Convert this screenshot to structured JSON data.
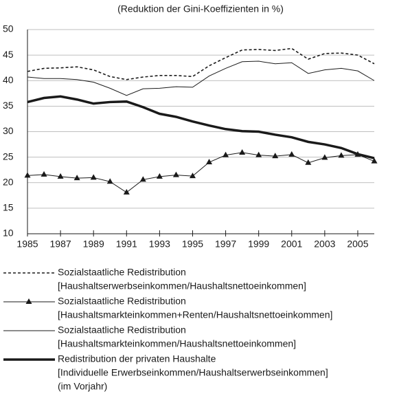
{
  "chart_data": {
    "type": "line",
    "subtitle": "(Reduktion der Gini-Koeffizienten in %)",
    "x": [
      1985,
      1986,
      1987,
      1988,
      1989,
      1990,
      1991,
      1992,
      1993,
      1994,
      1995,
      1996,
      1997,
      1998,
      1999,
      2000,
      2001,
      2002,
      2003,
      2004,
      2005,
      2006
    ],
    "xlim": [
      1985,
      2006
    ],
    "xticks": [
      1985,
      1987,
      1989,
      1991,
      1993,
      1995,
      1997,
      1999,
      2001,
      2003,
      2005
    ],
    "ylim": [
      10,
      50
    ],
    "yticks": [
      10,
      15,
      20,
      25,
      30,
      35,
      40,
      45,
      50
    ],
    "grid": true,
    "series": [
      {
        "name": "Sozialstaatliche Redistribution",
        "detail": [
          "[Haushaltserwerbseinkommen/Haushaltsnettoeinkommen]"
        ],
        "color": "#1a1a1a",
        "line_style": "dotted",
        "line_width": 1.6,
        "marker": "none",
        "values": [
          41.8,
          42.4,
          42.5,
          42.7,
          42.1,
          40.8,
          40.2,
          40.7,
          41.0,
          41.0,
          40.8,
          42.9,
          44.5,
          46.0,
          46.1,
          45.9,
          46.3,
          44.2,
          45.3,
          45.4,
          45.0,
          43.3
        ]
      },
      {
        "name": "Sozialstaatliche Redistribution",
        "detail": [
          "[Haushaltsmarkteinkommen+Renten/Haushaltsnettoeinkommen]"
        ],
        "color": "#1a1a1a",
        "line_style": "solid",
        "line_width": 1,
        "marker": "triangle",
        "values": [
          21.4,
          21.6,
          21.2,
          20.9,
          21.0,
          20.2,
          18.1,
          20.6,
          21.2,
          21.5,
          21.3,
          24.0,
          25.4,
          25.9,
          25.4,
          25.2,
          25.5,
          23.9,
          24.9,
          25.3,
          25.5,
          24.2
        ]
      },
      {
        "name": "Sozialstaatliche Redistribution",
        "detail": [
          "[Haushaltsmarkteinkommen/Haushaltsnettoeinkommen]"
        ],
        "color": "#1a1a1a",
        "line_style": "solid",
        "line_width": 1,
        "marker": "none",
        "values": [
          40.7,
          40.4,
          40.4,
          40.2,
          39.7,
          38.5,
          37.1,
          38.4,
          38.5,
          38.8,
          38.7,
          40.9,
          42.4,
          43.7,
          43.8,
          43.3,
          43.5,
          41.4,
          42.1,
          42.4,
          41.9,
          40.0
        ]
      },
      {
        "name": "Redistribution der privaten Haushalte",
        "detail": [
          "[Individuelle Erwerbseinkommen/Haushaltserwerbseinkommen]",
          "(im Vorjahr)"
        ],
        "color": "#1a1a1a",
        "line_style": "solid",
        "line_width": 3.5,
        "marker": "none",
        "values": [
          35.8,
          36.6,
          36.9,
          36.3,
          35.5,
          35.8,
          35.9,
          34.8,
          33.5,
          32.9,
          32.0,
          31.2,
          30.5,
          30.1,
          30.0,
          29.4,
          28.9,
          28.0,
          27.5,
          26.8,
          25.6,
          24.8
        ]
      }
    ]
  }
}
